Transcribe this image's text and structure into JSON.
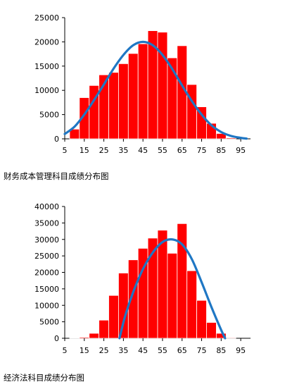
{
  "chart_data": [
    {
      "type": "bar",
      "caption": "财务成本管理科目成绩分布图",
      "x_tick_labels": [
        "5",
        "15",
        "25",
        "35",
        "45",
        "55",
        "65",
        "75",
        "85",
        "95"
      ],
      "x_tick_values": [
        5,
        15,
        25,
        35,
        45,
        55,
        65,
        75,
        85,
        95
      ],
      "xlim": [
        5,
        100
      ],
      "y_tick_labels": [
        "0",
        "5000",
        "10000",
        "15000",
        "20000",
        "25000"
      ],
      "ylim": [
        0,
        25000
      ],
      "bar_color": "#ff0000",
      "curve_color": "#1f77c4",
      "bins": [
        {
          "x": 10,
          "value": 2000
        },
        {
          "x": 15,
          "value": 8500
        },
        {
          "x": 20,
          "value": 11000
        },
        {
          "x": 25,
          "value": 13200
        },
        {
          "x": 30,
          "value": 13700
        },
        {
          "x": 35,
          "value": 15500
        },
        {
          "x": 40,
          "value": 17600
        },
        {
          "x": 45,
          "value": 19600
        },
        {
          "x": 50,
          "value": 22300
        },
        {
          "x": 55,
          "value": 22000
        },
        {
          "x": 60,
          "value": 16700
        },
        {
          "x": 65,
          "value": 19200
        },
        {
          "x": 70,
          "value": 11200
        },
        {
          "x": 75,
          "value": 6600
        },
        {
          "x": 80,
          "value": 3200
        },
        {
          "x": 85,
          "value": 1100
        },
        {
          "x": 90,
          "value": 200
        }
      ],
      "curve": [
        [
          5,
          1000
        ],
        [
          10,
          2500
        ],
        [
          15,
          5000
        ],
        [
          20,
          8000
        ],
        [
          25,
          11200
        ],
        [
          30,
          14500
        ],
        [
          35,
          17300
        ],
        [
          40,
          19300
        ],
        [
          45,
          20000
        ],
        [
          50,
          19300
        ],
        [
          55,
          17300
        ],
        [
          60,
          14400
        ],
        [
          65,
          11000
        ],
        [
          70,
          7800
        ],
        [
          75,
          5000
        ],
        [
          80,
          2800
        ],
        [
          85,
          1400
        ],
        [
          90,
          600
        ],
        [
          95,
          200
        ],
        [
          98,
          50
        ]
      ]
    },
    {
      "type": "bar",
      "caption": "经济法科目成绩分布图",
      "x_tick_labels": [
        "5",
        "15",
        "25",
        "35",
        "45",
        "55",
        "65",
        "75",
        "85",
        "95"
      ],
      "x_tick_values": [
        5,
        15,
        25,
        35,
        45,
        55,
        65,
        75,
        85,
        95
      ],
      "xlim": [
        5,
        100
      ],
      "y_tick_labels": [
        "0",
        "5000",
        "10000",
        "15000",
        "20000",
        "25000",
        "30000",
        "35000",
        "40000"
      ],
      "ylim": [
        0,
        40000
      ],
      "bar_color": "#ff0000",
      "curve_color": "#1f77c4",
      "bins": [
        {
          "x": 10,
          "value": 50
        },
        {
          "x": 15,
          "value": 300
        },
        {
          "x": 20,
          "value": 1500
        },
        {
          "x": 25,
          "value": 5500
        },
        {
          "x": 30,
          "value": 13000
        },
        {
          "x": 35,
          "value": 19800
        },
        {
          "x": 40,
          "value": 23800
        },
        {
          "x": 45,
          "value": 27300
        },
        {
          "x": 50,
          "value": 30400
        },
        {
          "x": 55,
          "value": 32800
        },
        {
          "x": 60,
          "value": 25800
        },
        {
          "x": 65,
          "value": 34800
        },
        {
          "x": 70,
          "value": 20500
        },
        {
          "x": 75,
          "value": 11500
        },
        {
          "x": 80,
          "value": 4800
        },
        {
          "x": 85,
          "value": 1500
        },
        {
          "x": 90,
          "value": 200
        }
      ],
      "curve": [
        [
          33,
          0
        ],
        [
          36,
          7000
        ],
        [
          40,
          14000
        ],
        [
          45,
          21000
        ],
        [
          50,
          26000
        ],
        [
          55,
          29200
        ],
        [
          60,
          30000
        ],
        [
          65,
          28500
        ],
        [
          70,
          24000
        ],
        [
          75,
          17000
        ],
        [
          80,
          9500
        ],
        [
          85,
          2500
        ],
        [
          87,
          0
        ]
      ]
    }
  ]
}
